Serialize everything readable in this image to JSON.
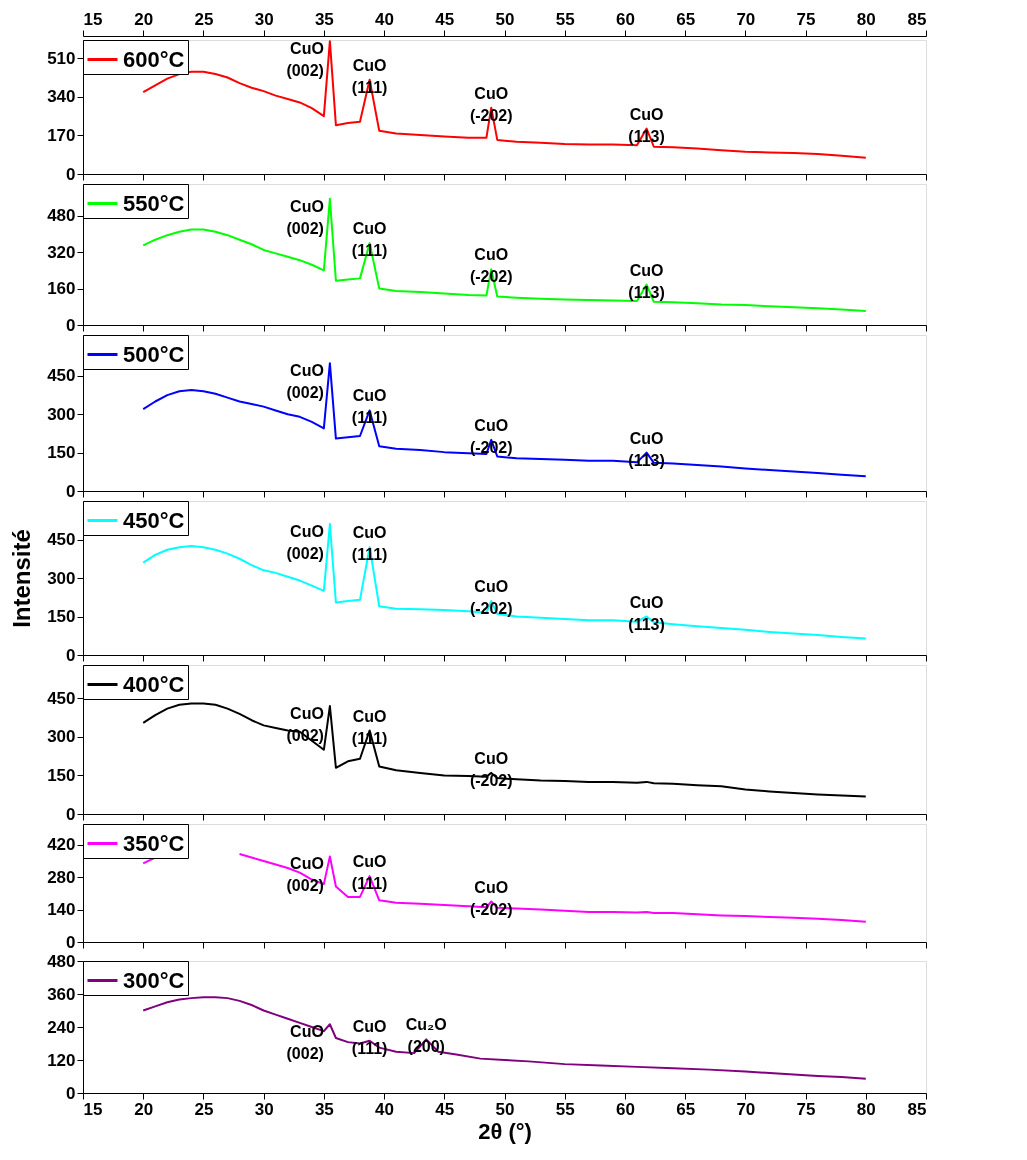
{
  "chart_data": [
    {
      "type": "line",
      "x": [
        20,
        21,
        22,
        23,
        24,
        25,
        26,
        27,
        28,
        29,
        30,
        31,
        32,
        33,
        34,
        35,
        35.5,
        36,
        37,
        38,
        38.8,
        39.6,
        41,
        43,
        45,
        47,
        48.5,
        48.9,
        49.4,
        51,
        53,
        55,
        57,
        59,
        61,
        61.8,
        62.4,
        64,
        66,
        68,
        70,
        72,
        74,
        76,
        78,
        80
      ],
      "series": [
        {
          "name": "600°C",
          "color": "#ff0000",
          "values": [
            360,
            390,
            420,
            440,
            450,
            450,
            440,
            425,
            400,
            380,
            365,
            345,
            330,
            315,
            290,
            255,
            585,
            215,
            225,
            230,
            415,
            190,
            178,
            172,
            165,
            160,
            160,
            292,
            150,
            142,
            138,
            132,
            130,
            130,
            127,
            200,
            120,
            118,
            112,
            105,
            98,
            95,
            92,
            88,
            80,
            72
          ]
        }
      ],
      "xlim": [
        15,
        85
      ],
      "xticks": [
        15,
        20,
        25,
        30,
        35,
        40,
        45,
        50,
        55,
        60,
        65,
        70,
        75,
        80,
        85
      ],
      "x2lim": [
        15,
        85
      ],
      "x2ticks": [
        15,
        20,
        25,
        30,
        35,
        40,
        45,
        50,
        55,
        60,
        65,
        70,
        75,
        80,
        85
      ],
      "ylim": [
        0,
        590
      ],
      "yticks": [
        0,
        170,
        340,
        510
      ],
      "tick_labels": "y",
      "legend": "top left",
      "annotations": [
        {
          "text": "CuO\n(002)",
          "x": 35.5,
          "y": 585
        },
        {
          "text": "CuO\n(111)",
          "x": 38.8,
          "y": 415
        },
        {
          "text": "CuO\n(-202)",
          "x": 48.9,
          "y": 292
        },
        {
          "text": "CuO\n(113)",
          "x": 61.8,
          "y": 200
        }
      ]
    },
    {
      "type": "line",
      "x": [
        20,
        21,
        22,
        23,
        24,
        25,
        26,
        27,
        28,
        29,
        30,
        31,
        32,
        33,
        34,
        35,
        35.5,
        36,
        37,
        38,
        38.8,
        39.6,
        41,
        43,
        45,
        47,
        48.5,
        48.9,
        49.4,
        51,
        53,
        55,
        57,
        59,
        61,
        61.8,
        62.4,
        64,
        66,
        68,
        70,
        72,
        74,
        76,
        78,
        80
      ],
      "series": [
        {
          "name": "550°C",
          "color": "#00ff00",
          "values": [
            350,
            375,
            395,
            410,
            420,
            420,
            410,
            395,
            375,
            355,
            330,
            315,
            300,
            285,
            265,
            240,
            555,
            195,
            200,
            205,
            360,
            160,
            150,
            145,
            138,
            132,
            130,
            245,
            125,
            120,
            115,
            112,
            110,
            108,
            106,
            178,
            102,
            100,
            96,
            90,
            88,
            82,
            78,
            74,
            68,
            62
          ]
        }
      ],
      "xlim": [
        15,
        85
      ],
      "xticks": [
        15,
        20,
        25,
        30,
        35,
        40,
        45,
        50,
        55,
        60,
        65,
        70,
        75,
        80,
        85
      ],
      "ylim": [
        0,
        620
      ],
      "yticks": [
        0,
        160,
        320,
        480
      ],
      "tick_labels": "y",
      "legend": "top left",
      "annotations": [
        {
          "text": "CuO\n(002)",
          "x": 35.5,
          "y": 555
        },
        {
          "text": "CuO\n(111)",
          "x": 38.8,
          "y": 360
        },
        {
          "text": "CuO\n(-202)",
          "x": 48.9,
          "y": 245
        },
        {
          "text": "CuO\n(113)",
          "x": 61.8,
          "y": 178
        }
      ]
    },
    {
      "type": "line",
      "x": [
        20,
        21,
        22,
        23,
        24,
        25,
        26,
        27,
        28,
        29,
        30,
        31,
        32,
        33,
        34,
        35,
        35.5,
        36,
        37,
        38,
        38.8,
        39.6,
        41,
        43,
        45,
        47,
        48.5,
        48.9,
        49.4,
        51,
        53,
        55,
        57,
        59,
        61,
        61.8,
        62.4,
        64,
        66,
        68,
        70,
        72,
        74,
        76,
        78,
        80
      ],
      "series": [
        {
          "name": "500°C",
          "color": "#0000ff",
          "values": [
            320,
            350,
            375,
            390,
            395,
            390,
            380,
            365,
            350,
            340,
            330,
            315,
            300,
            290,
            270,
            245,
            500,
            205,
            210,
            215,
            315,
            175,
            165,
            160,
            152,
            148,
            145,
            200,
            135,
            128,
            125,
            122,
            118,
            118,
            112,
            150,
            110,
            108,
            102,
            96,
            88,
            82,
            76,
            70,
            64,
            58
          ]
        }
      ],
      "xlim": [
        15,
        85
      ],
      "xticks": [
        15,
        20,
        25,
        30,
        35,
        40,
        45,
        50,
        55,
        60,
        65,
        70,
        75,
        80,
        85
      ],
      "ylim": [
        0,
        610
      ],
      "yticks": [
        0,
        150,
        300,
        450
      ],
      "tick_labels": "y",
      "legend": "top left",
      "annotations": [
        {
          "text": "CuO\n(002)",
          "x": 35.5,
          "y": 500
        },
        {
          "text": "CuO\n(111)",
          "x": 38.8,
          "y": 315
        },
        {
          "text": "CuO\n(-202)",
          "x": 48.9,
          "y": 200
        },
        {
          "text": "CuO\n(113)",
          "x": 61.8,
          "y": 150
        }
      ]
    },
    {
      "type": "line",
      "x": [
        20,
        21,
        22,
        23,
        24,
        25,
        26,
        27,
        28,
        29,
        30,
        31,
        32,
        33,
        34,
        35,
        35.5,
        36,
        37,
        38,
        38.8,
        39.6,
        41,
        43,
        45,
        47,
        48.5,
        48.9,
        49.4,
        51,
        53,
        55,
        57,
        59,
        61,
        61.8,
        62.4,
        64,
        66,
        68,
        70,
        72,
        74,
        76,
        78,
        80
      ],
      "series": [
        {
          "name": "450°C",
          "color": "#00ffff",
          "values": [
            360,
            390,
            410,
            420,
            425,
            420,
            410,
            395,
            375,
            350,
            330,
            320,
            305,
            290,
            270,
            250,
            510,
            205,
            210,
            215,
            420,
            190,
            180,
            178,
            175,
            170,
            165,
            210,
            160,
            150,
            145,
            140,
            135,
            135,
            130,
            150,
            128,
            120,
            112,
            105,
            98,
            90,
            84,
            78,
            70,
            64
          ]
        }
      ],
      "xlim": [
        15,
        85
      ],
      "xticks": [
        15,
        20,
        25,
        30,
        35,
        40,
        45,
        50,
        55,
        60,
        65,
        70,
        75,
        80,
        85
      ],
      "ylim": [
        0,
        600
      ],
      "yticks": [
        0,
        150,
        300,
        450
      ],
      "tick_labels": "y",
      "legend": "top left",
      "ylabel": "Intensité",
      "annotations": [
        {
          "text": "CuO\n(002)",
          "x": 35.5,
          "y": 510
        },
        {
          "text": "CuO\n(111)",
          "x": 38.8,
          "y": 420
        },
        {
          "text": "CuO\n(-202)",
          "x": 48.9,
          "y": 210
        },
        {
          "text": "CuO\n(113)",
          "x": 61.8,
          "y": 150
        }
      ]
    },
    {
      "type": "line",
      "x": [
        20,
        21,
        22,
        23,
        24,
        25,
        26,
        27,
        28,
        29,
        30,
        31,
        32,
        33,
        34,
        35,
        35.5,
        36,
        37,
        38,
        38.8,
        39.6,
        41,
        43,
        45,
        47,
        48.5,
        48.9,
        49.4,
        51,
        53,
        55,
        57,
        59,
        61,
        61.8,
        62.4,
        64,
        66,
        68,
        70,
        72,
        74,
        76,
        78,
        80
      ],
      "series": [
        {
          "name": "400°C",
          "color": "#000000",
          "values": [
            355,
            385,
            410,
            425,
            430,
            430,
            425,
            410,
            390,
            365,
            345,
            335,
            325,
            320,
            285,
            250,
            420,
            180,
            205,
            215,
            325,
            185,
            170,
            160,
            150,
            148,
            145,
            160,
            140,
            135,
            130,
            128,
            125,
            125,
            122,
            125,
            120,
            118,
            112,
            108,
            95,
            88,
            82,
            76,
            72,
            68
          ]
        }
      ],
      "xlim": [
        15,
        85
      ],
      "xticks": [
        15,
        20,
        25,
        30,
        35,
        40,
        45,
        50,
        55,
        60,
        65,
        70,
        75,
        80,
        85
      ],
      "ylim": [
        0,
        580
      ],
      "yticks": [
        0,
        150,
        300,
        450
      ],
      "tick_labels": "y",
      "legend": "top left",
      "annotations": [
        {
          "text": "CuO\n(002)",
          "x": 35.5,
          "y": 420
        },
        {
          "text": "CuO\n(111)",
          "x": 38.8,
          "y": 325
        },
        {
          "text": "CuO\n(-202)",
          "x": 48.9,
          "y": 160
        }
      ]
    },
    {
      "type": "line",
      "x": [
        20,
        21,
        22,
        23,
        24,
        25,
        26,
        27,
        28,
        29,
        30,
        31,
        32,
        33,
        34,
        35,
        35.5,
        36,
        37,
        38,
        38.8,
        39.6,
        41,
        43,
        45,
        47,
        48.5,
        48.9,
        49.4,
        51,
        53,
        55,
        57,
        59,
        61,
        61.8,
        62.4,
        64,
        66,
        68,
        70,
        72,
        74,
        76,
        78,
        80
      ],
      "series": [
        {
          "name": "350°C",
          "color": "#ff00ff",
          "values": [
            340,
            365,
            null,
            null,
            null,
            null,
            null,
            null,
            380,
            365,
            350,
            335,
            320,
            300,
            270,
            250,
            370,
            240,
            195,
            195,
            285,
            180,
            170,
            165,
            160,
            155,
            150,
            175,
            148,
            145,
            140,
            135,
            130,
            130,
            128,
            130,
            125,
            125,
            120,
            115,
            112,
            108,
            105,
            100,
            95,
            88
          ]
        }
      ],
      "xlim": [
        15,
        85
      ],
      "xticks": [
        15,
        20,
        25,
        30,
        35,
        40,
        45,
        50,
        55,
        60,
        65,
        70,
        75,
        80,
        85
      ],
      "ylim": [
        0,
        510
      ],
      "yticks": [
        0,
        140,
        280,
        420
      ],
      "tick_labels": "y",
      "legend": "top left",
      "annotations": [
        {
          "text": "CuO\n(002)",
          "x": 35.5,
          "y": 370
        },
        {
          "text": "CuO\n(111)",
          "x": 38.8,
          "y": 285
        },
        {
          "text": "CuO\n(-202)",
          "x": 48.9,
          "y": 175
        }
      ]
    },
    {
      "type": "line",
      "x": [
        20,
        21,
        22,
        23,
        24,
        25,
        26,
        27,
        28,
        29,
        30,
        31,
        32,
        33,
        34,
        35,
        35.5,
        36,
        37,
        38,
        38.8,
        39.6,
        41,
        42.5,
        43.5,
        44.5,
        46,
        48,
        50,
        52,
        55,
        58,
        61,
        64,
        67,
        70,
        73,
        76,
        78,
        80
      ],
      "series": [
        {
          "name": "300°C",
          "color": "#800080",
          "values": [
            300,
            315,
            330,
            340,
            345,
            348,
            348,
            345,
            335,
            320,
            300,
            285,
            270,
            255,
            240,
            225,
            250,
            200,
            185,
            180,
            190,
            165,
            150,
            145,
            195,
            150,
            140,
            125,
            120,
            115,
            105,
            100,
            95,
            90,
            85,
            78,
            70,
            62,
            58,
            52
          ]
        }
      ],
      "xlim": [
        15,
        85
      ],
      "xticks": [
        15,
        20,
        25,
        30,
        35,
        40,
        45,
        50,
        55,
        60,
        65,
        70,
        75,
        80,
        85
      ],
      "ylim": [
        0,
        480
      ],
      "yticks": [
        0,
        120,
        240,
        360,
        480
      ],
      "legend": "top left",
      "xlabel": "2θ (°)",
      "annotations": [
        {
          "text": "CuO\n(002)",
          "x": 35.5,
          "y": 250
        },
        {
          "text": "CuO\n(111)",
          "x": 38.8,
          "y": 190
        },
        {
          "text": "Cu₂O\n(200)",
          "x": 43.5,
          "y": 195
        }
      ]
    }
  ]
}
